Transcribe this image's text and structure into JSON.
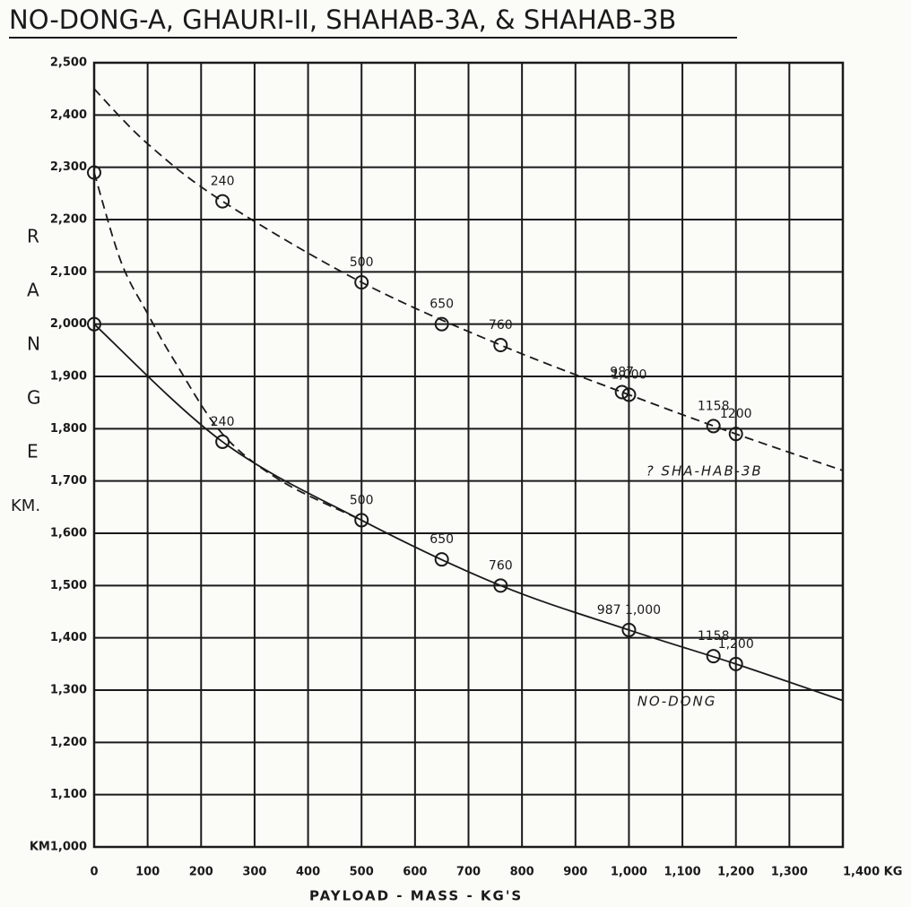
{
  "chart_data": {
    "type": "line",
    "title": "NO-DONG-A, GHAURI-II, SHAHAB-3A, & SHAHAB-3B",
    "ylabel": "RANGE",
    "yunit": "KM.",
    "xlabel": "PAYLOAD - MASS - KG'S",
    "xlim": [
      0,
      1400
    ],
    "ylim": [
      1000,
      2500
    ],
    "xticks": [
      0,
      100,
      200,
      300,
      400,
      500,
      600,
      700,
      800,
      900,
      {
        "value": 1000,
        "label": "1,000"
      },
      {
        "value": 1100,
        "label": "1,100"
      },
      {
        "value": 1200,
        "label": "1,200"
      },
      {
        "value": 1300,
        "label": "1,300"
      },
      {
        "value": 1400,
        "label": "1,400 KG"
      }
    ],
    "yticks": [
      {
        "value": 1000,
        "label": "KM1,000"
      },
      {
        "value": 1100,
        "label": "1,100"
      },
      {
        "value": 1200,
        "label": "1,200"
      },
      {
        "value": 1300,
        "label": "1,300"
      },
      {
        "value": 1400,
        "label": "1,400"
      },
      {
        "value": 1500,
        "label": "1,500"
      },
      {
        "value": 1600,
        "label": "1,600"
      },
      {
        "value": 1700,
        "label": "1,700"
      },
      {
        "value": 1800,
        "label": "1,800"
      },
      {
        "value": 1900,
        "label": "1,900"
      },
      {
        "value": 2000,
        "label": "2,000"
      },
      {
        "value": 2100,
        "label": "2,100"
      },
      {
        "value": 2200,
        "label": "2,200"
      },
      {
        "value": 2300,
        "label": "2,300"
      },
      {
        "value": 2400,
        "label": "2,400"
      },
      {
        "value": 2500,
        "label": "2,500"
      }
    ],
    "grid": true,
    "series": [
      {
        "name": "? SHA-HAB-3B",
        "color": "#1a1a1a",
        "x": [
          0,
          240,
          500,
          650,
          760,
          987,
          1000,
          1158,
          1200
        ],
        "values": [
          2290,
          2235,
          2080,
          2000,
          1960,
          1870,
          1865,
          1805,
          1790
        ],
        "point_labels": [
          null,
          "240",
          "500",
          "650",
          "760",
          "987",
          "1,000",
          "1158",
          "1200"
        ]
      },
      {
        "name": "NO-DONG",
        "color": "#1a1a1a",
        "x": [
          0,
          240,
          500,
          650,
          760,
          1000,
          1158,
          1200
        ],
        "values": [
          2000,
          1775,
          1625,
          1550,
          1500,
          1415,
          1365,
          1350
        ],
        "point_labels": [
          null,
          "240",
          "500",
          "650",
          "760",
          "987 1,000",
          "1158",
          "1,200"
        ]
      }
    ],
    "trends": [
      {
        "dash": true,
        "x": [
          0,
          100,
          240,
          500,
          760,
          1000,
          1200,
          1400
        ],
        "values": [
          2450,
          2345,
          2235,
          2080,
          1960,
          1865,
          1790,
          1720
        ]
      },
      {
        "dash": false,
        "x": [
          0,
          240,
          500,
          760,
          1000,
          1200,
          1400
        ],
        "values": [
          2000,
          1775,
          1625,
          1500,
          1415,
          1350,
          1280
        ]
      },
      {
        "dash": true,
        "x": [
          0,
          50,
          100,
          150,
          240,
          350,
          500
        ],
        "values": [
          2290,
          2120,
          2020,
          1930,
          1790,
          1700,
          1625
        ]
      }
    ]
  }
}
